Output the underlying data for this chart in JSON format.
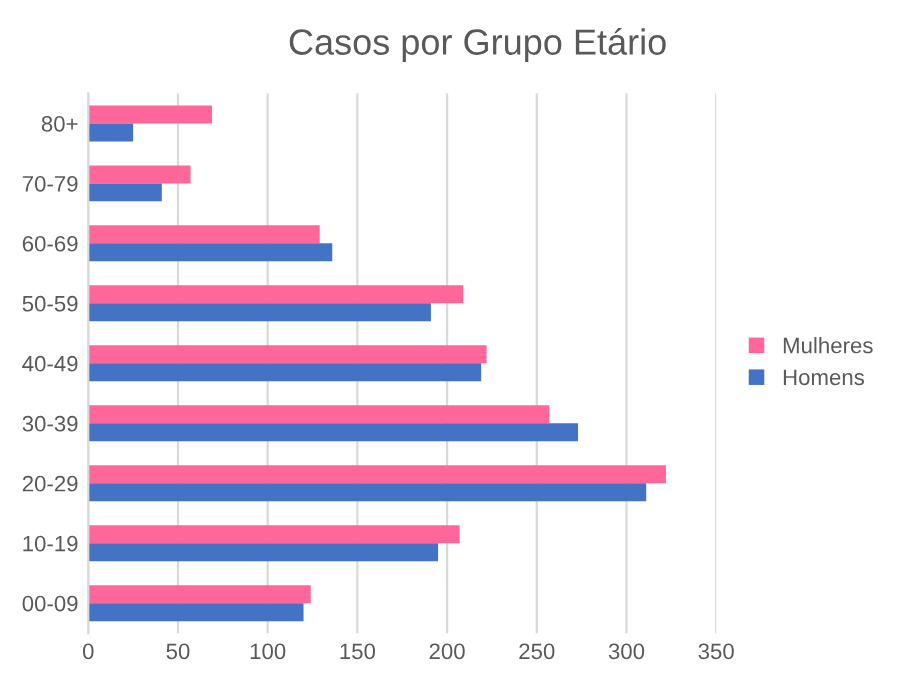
{
  "chart_data": {
    "type": "bar",
    "orientation": "horizontal",
    "title": "Casos por Grupo Etário",
    "categories": [
      "80+",
      "70-79",
      "60-69",
      "50-59",
      "40-49",
      "30-39",
      "20-29",
      "10-19",
      "00-09"
    ],
    "series": [
      {
        "name": "Mulheres",
        "color": "#ff6699",
        "values": [
          69,
          57,
          129,
          209,
          222,
          257,
          322,
          207,
          124
        ]
      },
      {
        "name": "Homens",
        "color": "#4472c4",
        "values": [
          25,
          41,
          136,
          191,
          219,
          273,
          311,
          195,
          120
        ]
      }
    ],
    "xlim": [
      0,
      350
    ],
    "xticks": [
      0,
      50,
      100,
      150,
      200,
      250,
      300,
      350
    ],
    "grid": "x",
    "legend": "right"
  }
}
